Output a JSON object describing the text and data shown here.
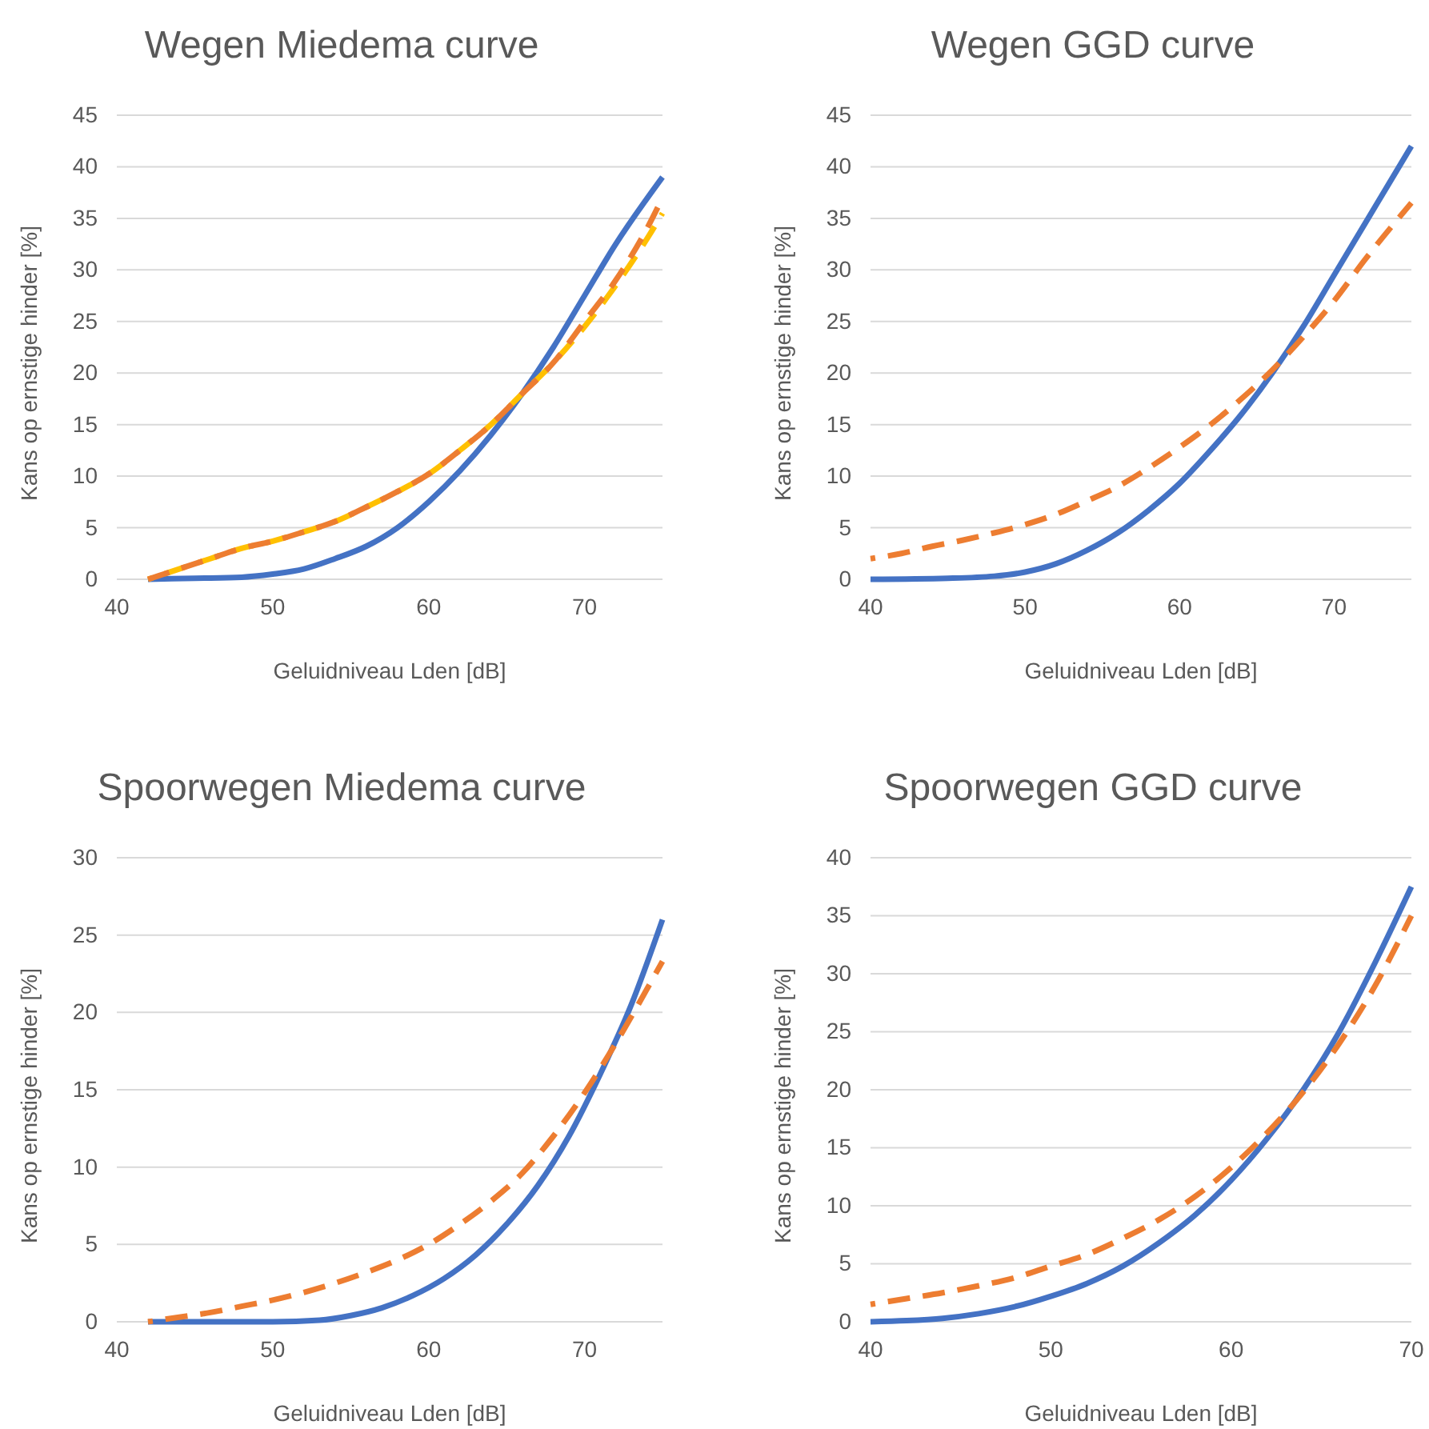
{
  "chart_data": [
    {
      "type": "line",
      "title": "Wegen Miedema curve",
      "xlabel": "Geluidniveau Lden [dB]",
      "ylabel": "Kans op ernstige hinder [%]",
      "xlim": [
        40,
        75
      ],
      "xticks": [
        40,
        50,
        60,
        70
      ],
      "ylim": [
        0,
        45
      ],
      "yticks": [
        0,
        5,
        10,
        15,
        20,
        25,
        30,
        35,
        40,
        45
      ],
      "grid": "y",
      "series": [
        {
          "color": "#4472c4",
          "line_style": "solid",
          "x": [
            42,
            45,
            48,
            50,
            52,
            54,
            56,
            58,
            60,
            62,
            64,
            66,
            68,
            70,
            72,
            75
          ],
          "values": [
            0,
            0.1,
            0.2,
            0.5,
            1,
            2,
            3.2,
            5,
            7.5,
            10.5,
            14,
            18,
            22.5,
            27.5,
            32.5,
            39
          ]
        },
        {
          "color": "#ffc000",
          "line_style": "dashed",
          "x": [
            42,
            44,
            46,
            48,
            50,
            52,
            54,
            56,
            58,
            60,
            62,
            64,
            66,
            68,
            70,
            72,
            74,
            75
          ],
          "values": [
            0,
            1,
            2,
            3,
            3.7,
            4.6,
            5.6,
            7,
            8.5,
            10.2,
            12.5,
            15,
            18,
            21,
            24.5,
            28.5,
            33,
            35.5
          ]
        },
        {
          "color": "#ed7d31",
          "line_style": "dashed",
          "x": [
            42,
            44,
            46,
            48,
            50,
            52,
            54,
            56,
            58,
            60,
            62,
            64,
            66,
            68,
            70,
            72,
            74,
            75
          ],
          "values": [
            0,
            1,
            2,
            3,
            3.7,
            4.6,
            5.6,
            7,
            8.5,
            10.2,
            12.5,
            15,
            18,
            21,
            25,
            29,
            34,
            37
          ]
        }
      ]
    },
    {
      "type": "line",
      "title": "Wegen GGD curve",
      "xlabel": "Geluidniveau Lden [dB]",
      "ylabel": "Kans op ernstige hinder [%]",
      "xlim": [
        40,
        75
      ],
      "xticks": [
        40,
        50,
        60,
        70
      ],
      "ylim": [
        0,
        45
      ],
      "yticks": [
        0,
        5,
        10,
        15,
        20,
        25,
        30,
        35,
        40,
        45
      ],
      "grid": "y",
      "series": [
        {
          "color": "#4472c4",
          "line_style": "solid",
          "x": [
            40,
            45,
            48,
            50,
            52,
            54,
            56,
            58,
            60,
            62,
            64,
            66,
            68,
            70,
            72,
            75
          ],
          "values": [
            0,
            0.1,
            0.3,
            0.7,
            1.5,
            2.8,
            4.5,
            6.7,
            9.3,
            12.5,
            16,
            20,
            24.5,
            29.5,
            34.5,
            42
          ]
        },
        {
          "color": "#ed7d31",
          "line_style": "dashed",
          "x": [
            40,
            42,
            44,
            46,
            48,
            50,
            52,
            54,
            56,
            58,
            60,
            62,
            64,
            66,
            68,
            70,
            72,
            75
          ],
          "values": [
            2,
            2.5,
            3.2,
            3.8,
            4.5,
            5.3,
            6.3,
            7.6,
            9,
            10.8,
            12.8,
            15,
            17.5,
            20.3,
            23.5,
            27,
            31,
            36.5
          ]
        }
      ]
    },
    {
      "type": "line",
      "title": "Spoorwegen Miedema curve",
      "xlabel": "Geluidniveau Lden [dB]",
      "ylabel": "Kans op ernstige hinder [%]",
      "xlim": [
        40,
        75
      ],
      "xticks": [
        40,
        50,
        60,
        70
      ],
      "ylim": [
        0,
        30
      ],
      "yticks": [
        0,
        5,
        10,
        15,
        20,
        25,
        30
      ],
      "grid": "y",
      "series": [
        {
          "color": "#4472c4",
          "line_style": "solid",
          "x": [
            42,
            50,
            53,
            55,
            57,
            59,
            61,
            63,
            65,
            67,
            69,
            71,
            73,
            75
          ],
          "values": [
            0,
            0,
            0.1,
            0.4,
            0.9,
            1.7,
            2.8,
            4.3,
            6.3,
            8.8,
            12,
            16,
            20.5,
            26
          ]
        },
        {
          "color": "#ed7d31",
          "line_style": "dashed",
          "x": [
            42,
            44,
            46,
            48,
            50,
            52,
            54,
            56,
            58,
            60,
            62,
            64,
            66,
            68,
            70,
            72,
            74,
            75
          ],
          "values": [
            0,
            0.3,
            0.6,
            1,
            1.4,
            1.9,
            2.5,
            3.2,
            4,
            5,
            6.3,
            7.8,
            9.6,
            12,
            14.8,
            18,
            21.5,
            23.3
          ]
        }
      ]
    },
    {
      "type": "line",
      "title": "Spoorwegen GGD curve",
      "xlabel": "Geluidniveau Lden [dB]",
      "ylabel": "Kans op ernstige hinder [%]",
      "xlim": [
        40,
        70
      ],
      "xticks": [
        40,
        50,
        60,
        70
      ],
      "ylim": [
        0,
        40
      ],
      "yticks": [
        0,
        5,
        10,
        15,
        20,
        25,
        30,
        35,
        40
      ],
      "grid": "y",
      "series": [
        {
          "color": "#4472c4",
          "line_style": "solid",
          "x": [
            40,
            42,
            44,
            46,
            48,
            50,
            52,
            54,
            56,
            58,
            60,
            62,
            64,
            66,
            68,
            70
          ],
          "values": [
            0,
            0.1,
            0.3,
            0.7,
            1.3,
            2.2,
            3.3,
            4.8,
            6.8,
            9.2,
            12.2,
            15.8,
            20,
            25,
            31,
            37.5
          ]
        },
        {
          "color": "#ed7d31",
          "line_style": "dashed",
          "x": [
            40,
            42,
            44,
            46,
            48,
            50,
            52,
            54,
            56,
            58,
            60,
            62,
            64,
            66,
            68,
            70
          ],
          "values": [
            1.5,
            2,
            2.5,
            3.1,
            3.8,
            4.8,
            5.8,
            7.2,
            8.8,
            10.8,
            13.3,
            16.3,
            19.8,
            24,
            29,
            35
          ]
        }
      ]
    }
  ]
}
